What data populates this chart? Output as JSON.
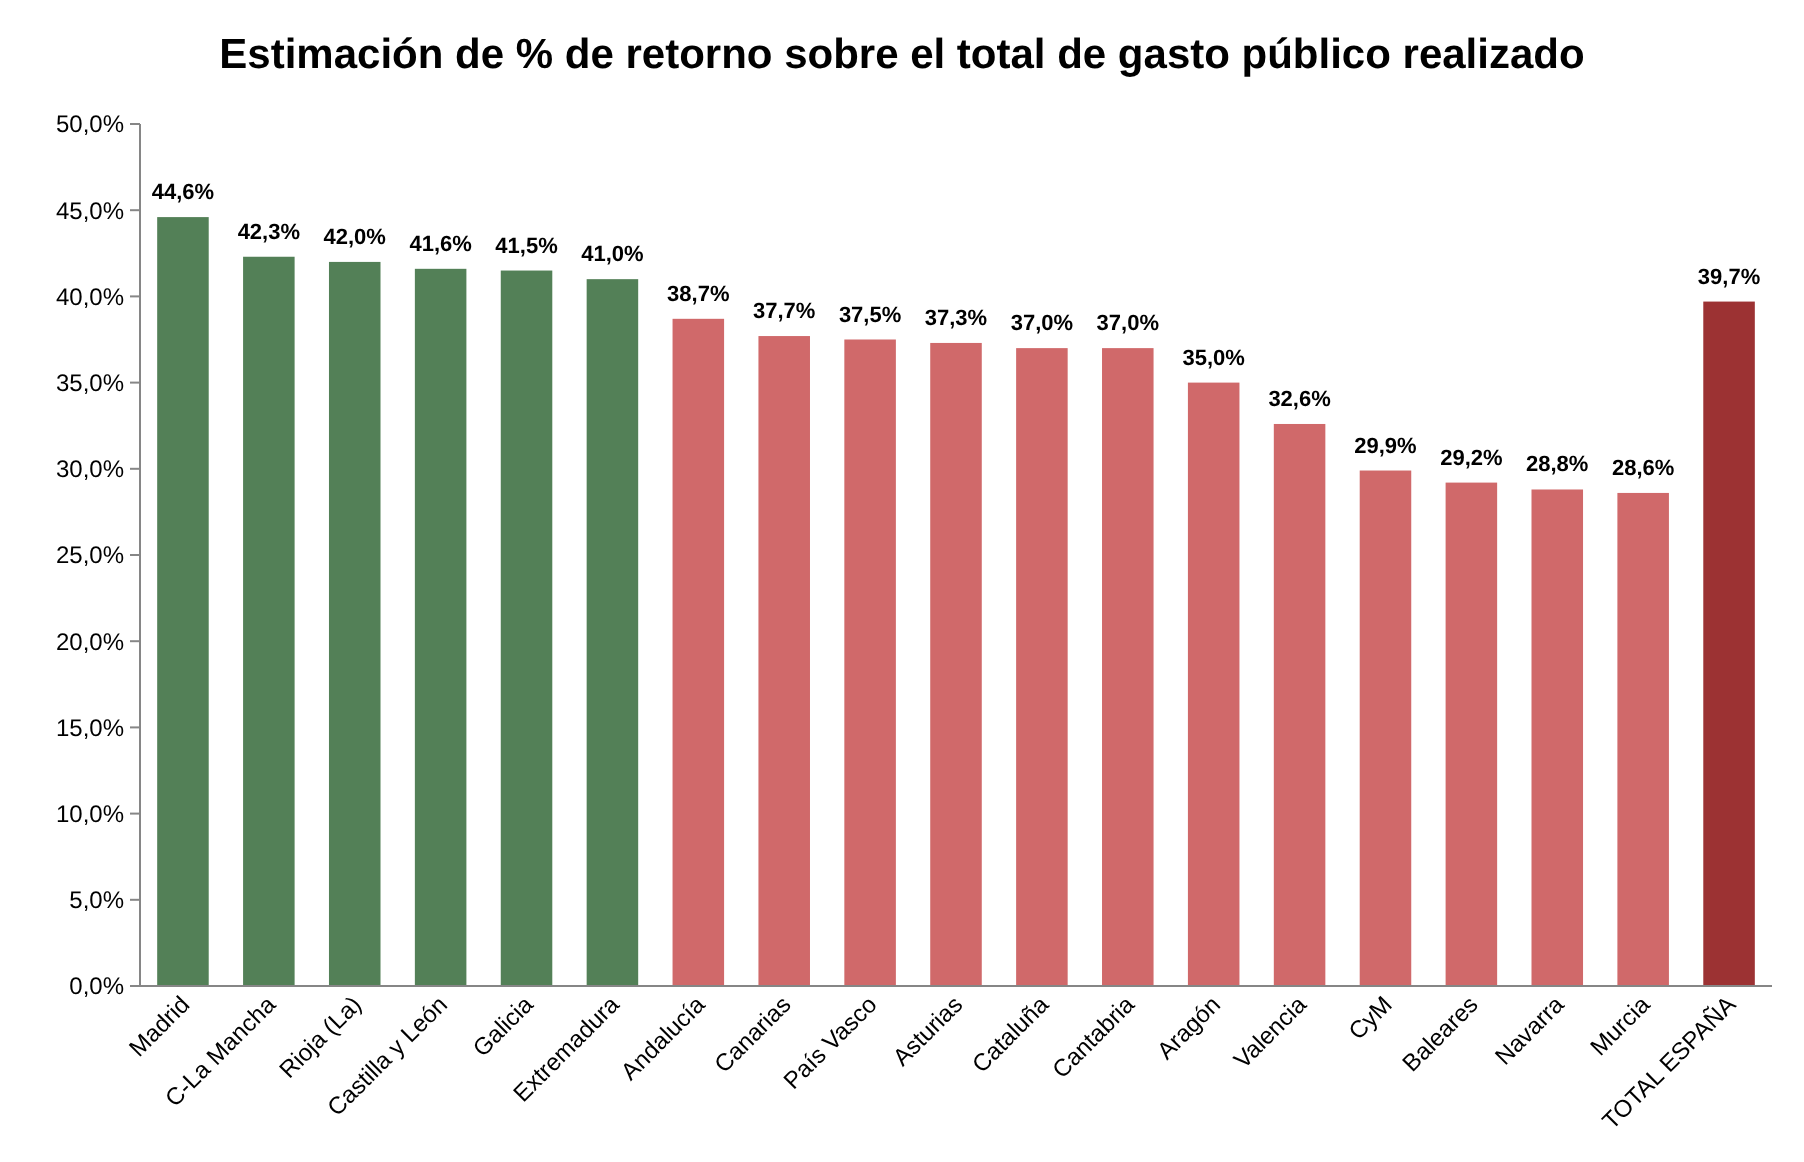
{
  "chart_data": {
    "type": "bar",
    "title": "Estimación de % de retorno sobre el total de gasto público realizado",
    "categories": [
      "Madrid",
      "C-La Mancha",
      "Rioja (La)",
      "Castilla y León",
      "Galicia",
      "Extremadura",
      "Andalucía",
      "Canarias",
      "País Vasco",
      "Asturias",
      "Cataluña",
      "Cantabria",
      "Aragón",
      "Valencia",
      "CyM",
      "Baleares",
      "Navarra",
      "Murcia",
      "TOTAL ESPAÑA"
    ],
    "values": [
      44.6,
      42.3,
      42.0,
      41.6,
      41.5,
      41.0,
      38.7,
      37.7,
      37.5,
      37.3,
      37.0,
      37.0,
      35.0,
      32.6,
      29.9,
      29.2,
      28.8,
      28.6,
      39.7
    ],
    "colors": [
      "#538057",
      "#538057",
      "#538057",
      "#538057",
      "#538057",
      "#538057",
      "#d0696a",
      "#d0696a",
      "#d0696a",
      "#d0696a",
      "#d0696a",
      "#d0696a",
      "#d0696a",
      "#d0696a",
      "#d0696a",
      "#d0696a",
      "#d0696a",
      "#d0696a",
      "#9c3233"
    ],
    "value_labels": [
      "44,6%",
      "42,3%",
      "42,0%",
      "41,6%",
      "41,5%",
      "41,0%",
      "38,7%",
      "37,7%",
      "37,5%",
      "37,3%",
      "37,0%",
      "37,0%",
      "35,0%",
      "32,6%",
      "29,9%",
      "29,2%",
      "28,8%",
      "28,6%",
      "39,7%"
    ],
    "ylim": [
      0,
      50
    ],
    "yticks": [
      {
        "value": 0,
        "label": "0,0%"
      },
      {
        "value": 5,
        "label": "5,0%"
      },
      {
        "value": 10,
        "label": "10,0%"
      },
      {
        "value": 15,
        "label": "15,0%"
      },
      {
        "value": 20,
        "label": "20,0%"
      },
      {
        "value": 25,
        "label": "25,0%"
      },
      {
        "value": 30,
        "label": "30,0%"
      },
      {
        "value": 35,
        "label": "35,0%"
      },
      {
        "value": 40,
        "label": "40,0%"
      },
      {
        "value": 45,
        "label": "45,0%"
      },
      {
        "value": 50,
        "label": "50,0%"
      }
    ]
  }
}
